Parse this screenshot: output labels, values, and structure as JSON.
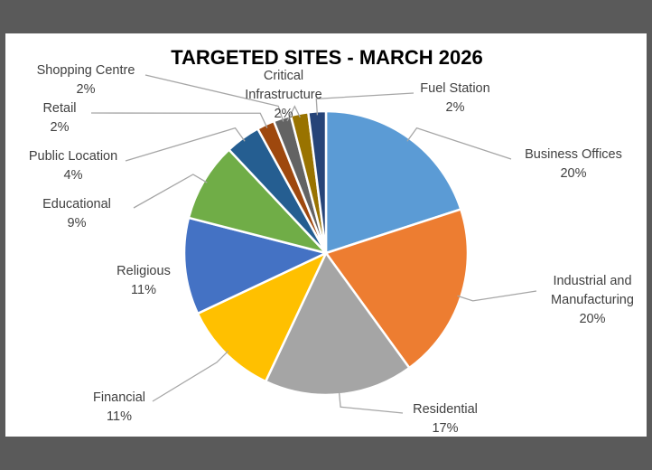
{
  "chart_data": {
    "type": "pie",
    "title": "TARGETED SITES - MARCH 2026",
    "slices": [
      {
        "label": "Business Offices",
        "value": 20,
        "display": "20%",
        "color": "#5b9bd5"
      },
      {
        "label": "Industrial and Manufacturing",
        "value": 20,
        "display": "20%",
        "color": "#ed7d31"
      },
      {
        "label": "Residential",
        "value": 17,
        "display": "17%",
        "color": "#a5a5a5"
      },
      {
        "label": "Financial",
        "value": 11,
        "display": "11%",
        "color": "#ffc000"
      },
      {
        "label": "Religious",
        "value": 11,
        "display": "11%",
        "color": "#4472c4"
      },
      {
        "label": "Educational",
        "value": 9,
        "display": "9%",
        "color": "#70ad47"
      },
      {
        "label": "Public Location",
        "value": 4,
        "display": "4%",
        "color": "#255e91"
      },
      {
        "label": "Retail",
        "value": 2,
        "display": "2%",
        "color": "#9e480e"
      },
      {
        "label": "Shopping Centre",
        "value": 2,
        "display": "2%",
        "color": "#636363"
      },
      {
        "label": "Critical Infrastructure",
        "value": 2,
        "display": "2%",
        "color": "#997300"
      },
      {
        "label": "Fuel Station",
        "value": 2,
        "display": "2%",
        "color": "#264478"
      }
    ]
  }
}
